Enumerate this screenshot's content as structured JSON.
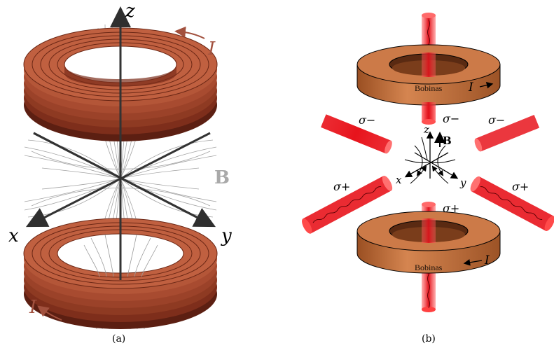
{
  "panel_a": {
    "caption": "(a)",
    "axes": {
      "x": "x",
      "y": "y",
      "z": "z"
    },
    "current_top": "I",
    "current_bottom": "I",
    "field_label": "B",
    "colors": {
      "coil": "#8e3a22",
      "current_label": "#a2513e",
      "field_label": "#a9a9a9",
      "axis": "#333333"
    }
  },
  "panel_b": {
    "caption": "(b)",
    "coil_top": {
      "label": "Bobinas",
      "current": "I"
    },
    "coil_bottom": {
      "label": "Bobinas",
      "current": "I"
    },
    "axes": {
      "x": "x",
      "y": "y",
      "z": "z"
    },
    "field_label": "B",
    "beams": {
      "top": "σ−",
      "upper_left": "σ−",
      "upper_right": "σ−",
      "lower_left": "σ+",
      "lower_right": "σ+",
      "bottom": "σ+"
    },
    "colors": {
      "coil": "#cc7a48",
      "beam": "#e8141c"
    }
  }
}
